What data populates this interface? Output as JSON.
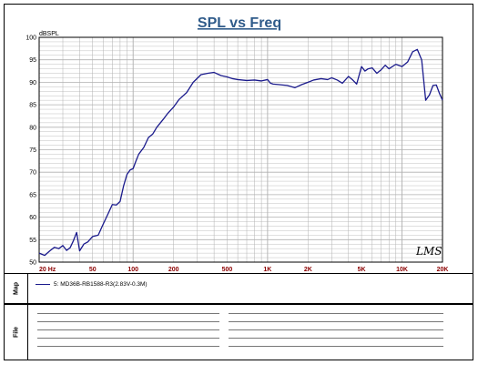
{
  "title": "SPL vs Freq",
  "watermark": "LMS",
  "map_label": "Map",
  "file_label": "File",
  "legend": {
    "entry": "5: MD36B-RB1588-R3(2.83V-0.3M)"
  },
  "colors": {
    "title": "#2f5b8a",
    "curve": "#1a1a8c",
    "grid": "#b0b0b0",
    "xtick": "#8b0000"
  },
  "chart_data": {
    "type": "line",
    "title": "SPL vs Freq",
    "ylabel": "dBSPL",
    "xlabel": "",
    "x_scale": "log",
    "xlim": [
      20,
      20000
    ],
    "ylim": [
      50,
      100
    ],
    "grid": true,
    "y_ticks": [
      50,
      55,
      60,
      65,
      70,
      75,
      80,
      85,
      90,
      95,
      100
    ],
    "x_ticks": [
      {
        "value": 20,
        "label": "20  Hz"
      },
      {
        "value": 50,
        "label": "50"
      },
      {
        "value": 100,
        "label": "100"
      },
      {
        "value": 200,
        "label": "200"
      },
      {
        "value": 500,
        "label": "500"
      },
      {
        "value": 1000,
        "label": "1K"
      },
      {
        "value": 2000,
        "label": "2K"
      },
      {
        "value": 5000,
        "label": "5K"
      },
      {
        "value": 10000,
        "label": "10K"
      },
      {
        "value": 20000,
        "label": "20K"
      }
    ],
    "series": [
      {
        "name": "5: MD36B-RB1588-R3(2.83V-0.3M)",
        "x": [
          20,
          22,
          24,
          26,
          28,
          30,
          32,
          34,
          36,
          38,
          40,
          43,
          46,
          50,
          55,
          60,
          65,
          70,
          75,
          80,
          85,
          90,
          95,
          100,
          105,
          110,
          120,
          130,
          140,
          150,
          170,
          180,
          200,
          220,
          250,
          280,
          320,
          360,
          400,
          450,
          500,
          550,
          600,
          700,
          800,
          900,
          1000,
          1050,
          1100,
          1200,
          1400,
          1600,
          1800,
          2000,
          2200,
          2500,
          2800,
          3000,
          3300,
          3600,
          4000,
          4300,
          4600,
          5000,
          5300,
          5600,
          6000,
          6500,
          7000,
          7500,
          8000,
          9000,
          10000,
          11000,
          12000,
          13000,
          14000,
          15000,
          16000,
          17000,
          18000,
          19000,
          20000
        ],
        "y": [
          52.0,
          51.5,
          52.5,
          53.3,
          53.0,
          53.7,
          52.6,
          53.2,
          54.8,
          56.6,
          52.5,
          54.0,
          54.5,
          55.7,
          56.0,
          58.5,
          60.7,
          62.8,
          62.7,
          63.5,
          67.0,
          69.5,
          70.5,
          70.8,
          72.5,
          74.0,
          75.5,
          77.7,
          78.5,
          80.0,
          82.0,
          83.0,
          84.5,
          86.2,
          87.7,
          90.0,
          91.7,
          92.0,
          92.2,
          91.5,
          91.2,
          90.8,
          90.6,
          90.4,
          90.5,
          90.3,
          90.6,
          89.8,
          89.6,
          89.5,
          89.3,
          88.8,
          89.5,
          90.0,
          90.5,
          90.8,
          90.6,
          91.0,
          90.5,
          89.8,
          91.3,
          90.5,
          89.6,
          93.5,
          92.5,
          93.0,
          93.2,
          92.0,
          92.8,
          93.8,
          93.0,
          94.0,
          93.5,
          94.5,
          96.8,
          97.3,
          95.0,
          86.0,
          87.2,
          89.3,
          89.4,
          87.5,
          86.0
        ]
      }
    ]
  }
}
